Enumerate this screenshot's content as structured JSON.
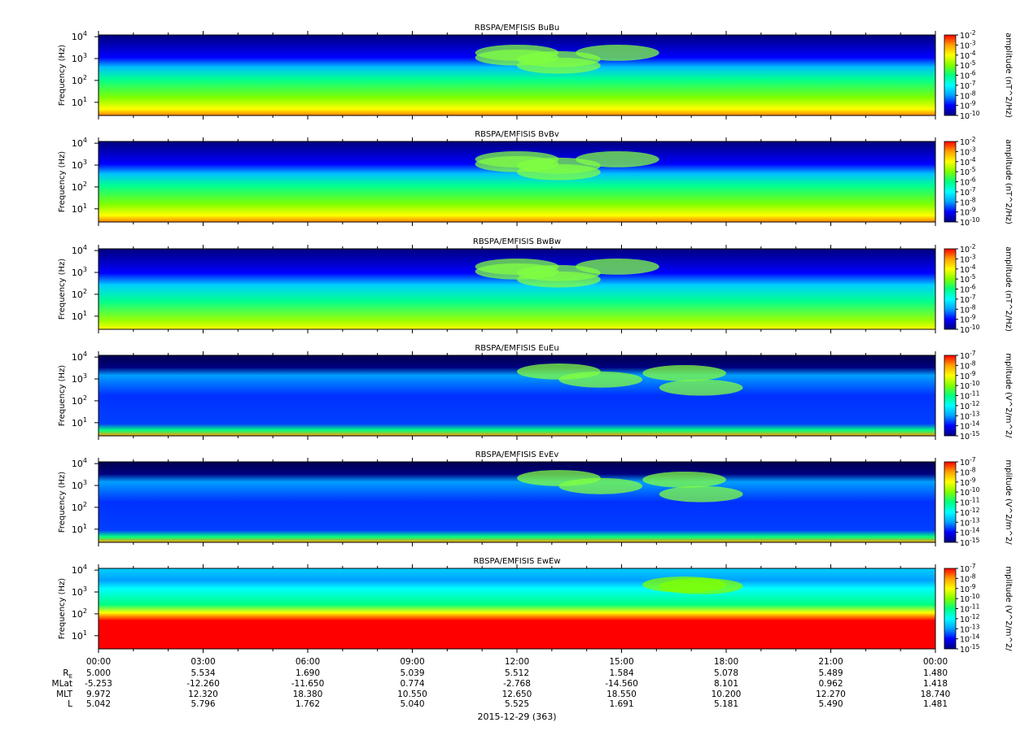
{
  "chart_data": {
    "type": "heatmap",
    "panels": [
      {
        "id": "BuBu",
        "title": "RBSPA/EMFISIS  BuBu",
        "ylabel": "Frequency (Hz)",
        "zlabel": "amplitude (nT^2/Hz)",
        "zlim_exp": [
          -10,
          -2
        ]
      },
      {
        "id": "BvBv",
        "title": "RBSPA/EMFISIS  BvBv",
        "ylabel": "Frequency (Hz)",
        "zlabel": "amplitude (nT^2/Hz)",
        "zlim_exp": [
          -10,
          -2
        ]
      },
      {
        "id": "BwBw",
        "title": "RBSPA/EMFISIS  BwBw",
        "ylabel": "Frequency (Hz)",
        "zlabel": "amplitude (nT^2/Hz)",
        "zlim_exp": [
          -10,
          -2
        ]
      },
      {
        "id": "EuEu",
        "title": "RBSPA/EMFISIS  EuEu",
        "ylabel": "Frequency (Hz)",
        "zlabel": "mplitude (V^2/m^2/",
        "zlim_exp": [
          -15,
          -7
        ]
      },
      {
        "id": "EvEv",
        "title": "RBSPA/EMFISIS  EvEv",
        "ylabel": "Frequency (Hz)",
        "zlabel": "mplitude (V^2/m^2/",
        "zlim_exp": [
          -15,
          -7
        ]
      },
      {
        "id": "EwEw",
        "title": "RBSPA/EMFISIS  EwEw",
        "ylabel": "Frequency (Hz)",
        "zlabel": "mplitude (V^2/m^2/",
        "zlim_exp": [
          -15,
          -7
        ]
      }
    ],
    "yscale": "log",
    "yticks_exp": [
      1,
      2,
      3,
      4
    ],
    "x_ticks": [
      "00:00",
      "03:00",
      "06:00",
      "09:00",
      "12:00",
      "15:00",
      "18:00",
      "21:00",
      "00:00"
    ],
    "x_hours": [
      0,
      3,
      6,
      9,
      12,
      15,
      18,
      21,
      24
    ],
    "ephemeris": [
      {
        "label": "R",
        "sub": "E",
        "values": [
          "5.000",
          "5.534",
          "1.690",
          "5.039",
          "5.512",
          "1.584",
          "5.078",
          "5.489",
          "1.480"
        ]
      },
      {
        "label": "MLat",
        "sub": "",
        "values": [
          "-5.253",
          "-12.260",
          "-11.650",
          "0.774",
          "-2.768",
          "-14.560",
          "8.101",
          "0.962",
          "1.418"
        ]
      },
      {
        "label": "MLT",
        "sub": "",
        "values": [
          "9.972",
          "12.320",
          "18.380",
          "10.550",
          "12.650",
          "18.550",
          "10.200",
          "12.270",
          "18.740"
        ]
      },
      {
        "label": "L",
        "sub": "",
        "values": [
          "5.042",
          "5.796",
          "1.762",
          "5.040",
          "5.525",
          "1.691",
          "5.181",
          "5.490",
          "1.481"
        ]
      }
    ],
    "date_label": "2015-12-29 (363)",
    "colormap": [
      "#00007e",
      "#0000ff",
      "#00a0ff",
      "#00ffff",
      "#00ff80",
      "#80ff00",
      "#ffff00",
      "#ffa000",
      "#ff0000"
    ]
  }
}
